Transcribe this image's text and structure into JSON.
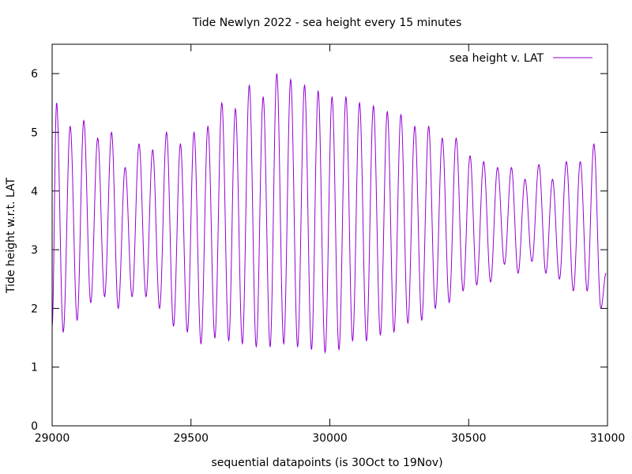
{
  "chart_data": {
    "type": "line",
    "title": "Tide Newlyn 2022 - sea height every 15 minutes",
    "xlabel": "sequential datapoints (is 30Oct to 19Nov)",
    "ylabel": "Tide height w.r.t. LAT",
    "xlim": [
      29000,
      31000
    ],
    "ylim": [
      0,
      6.5
    ],
    "x_ticks": [
      "29000",
      "29500",
      "30000",
      "30500",
      "31000"
    ],
    "y_ticks": [
      "0",
      "1",
      "2",
      "3",
      "4",
      "5",
      "6"
    ],
    "grid": false,
    "legend_position": "top-right",
    "series": [
      {
        "name": "sea height v. LAT",
        "color": "#9400d3",
        "x_start": 29000,
        "x_step": 1,
        "period_points": 49.7,
        "extrema_note": "alternating high-water and low-water heights, starting with the first low water near the start of the plotted range",
        "extrema_x": [
          29000,
          29016,
          29040,
          29065,
          29090,
          29114,
          29139,
          29164,
          29189,
          29214,
          29238,
          29263,
          29288,
          29313,
          29338,
          29362,
          29387,
          29412,
          29437,
          29462,
          29487,
          29511,
          29536,
          29561,
          29586,
          29611,
          29636,
          29660,
          29685,
          29710,
          29735,
          29760,
          29785,
          29809,
          29834,
          29859,
          29884,
          29909,
          29934,
          29958,
          29983,
          30008,
          30033,
          30058,
          30082,
          30107,
          30132,
          30157,
          30182,
          30207,
          30231,
          30256,
          30281,
          30306,
          30331,
          30356,
          30380,
          30405,
          30430,
          30455,
          30480,
          30505,
          30529,
          30554,
          30579,
          30604,
          30629,
          30654,
          30678,
          30703,
          30728,
          30753,
          30778,
          30802,
          30827,
          30852,
          30877,
          30902,
          30927,
          30951,
          30976,
          30995
        ],
        "extrema_y": [
          1.7,
          5.5,
          1.6,
          5.1,
          1.8,
          5.2,
          2.1,
          4.9,
          2.2,
          5.0,
          2.0,
          4.4,
          2.2,
          4.8,
          2.2,
          4.7,
          2.0,
          5.0,
          1.7,
          4.8,
          1.6,
          5.0,
          1.4,
          5.1,
          1.5,
          5.5,
          1.45,
          5.4,
          1.4,
          5.8,
          1.35,
          5.6,
          1.35,
          6.0,
          1.4,
          5.9,
          1.35,
          5.8,
          1.3,
          5.7,
          1.25,
          5.6,
          1.3,
          5.6,
          1.45,
          5.5,
          1.45,
          5.45,
          1.55,
          5.35,
          1.6,
          5.3,
          1.75,
          5.1,
          1.8,
          5.1,
          2.0,
          4.9,
          2.1,
          4.9,
          2.3,
          4.6,
          2.4,
          4.5,
          2.45,
          4.4,
          2.75,
          4.4,
          2.6,
          4.2,
          2.8,
          4.45,
          2.6,
          4.2,
          2.5,
          4.5,
          2.3,
          4.5,
          2.3,
          4.8,
          2.0,
          2.6
        ]
      }
    ]
  }
}
